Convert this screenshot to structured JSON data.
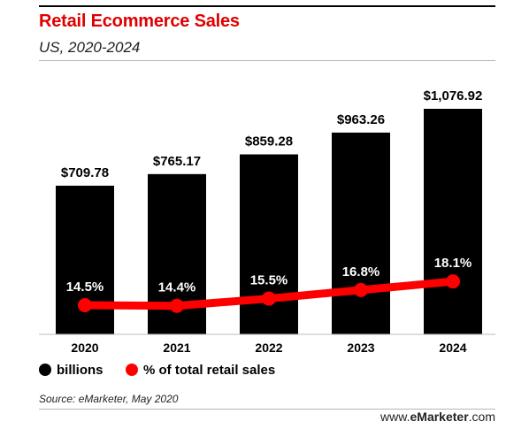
{
  "header": {
    "title": "Retail Ecommerce Sales",
    "subtitle": "US, 2020-2024"
  },
  "chart_data": {
    "type": "bar",
    "title": "Retail Ecommerce Sales",
    "subtitle": "US, 2020-2024",
    "categories": [
      "2020",
      "2021",
      "2022",
      "2023",
      "2024"
    ],
    "series": [
      {
        "name": "billions",
        "kind": "bar",
        "color": "#000000",
        "values": [
          709.78,
          765.17,
          859.28,
          963.26,
          1076.92
        ],
        "labels": [
          "$709.78",
          "$765.17",
          "$859.28",
          "$963.26",
          "$1,076.92"
        ]
      },
      {
        "name": "% of total retail sales",
        "kind": "line",
        "color": "#ff0000",
        "values": [
          14.5,
          14.4,
          15.5,
          16.8,
          18.1
        ],
        "labels": [
          "14.5%",
          "14.4%",
          "15.5%",
          "16.8%",
          "18.1%"
        ]
      }
    ],
    "grid": false,
    "legend_position": "bottom-left"
  },
  "legend": [
    {
      "label": "billions",
      "color": "#000000"
    },
    {
      "label": "% of total retail sales",
      "color": "#ff0000"
    }
  ],
  "footer": {
    "source": "Source: eMarketer, May 2020",
    "logo_prefix": "www.",
    "logo_brand": "eMarketer",
    "logo_suffix": ".com"
  }
}
